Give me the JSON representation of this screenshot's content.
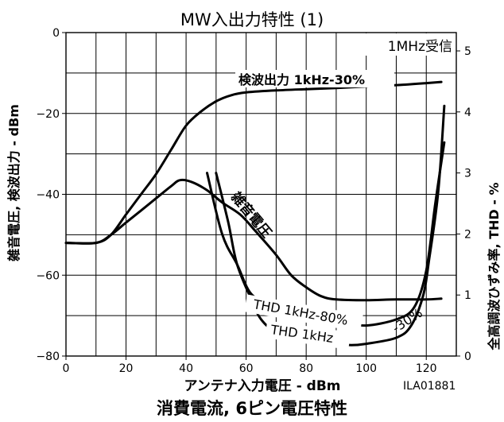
{
  "chart_data": {
    "type": "line",
    "title": "MW入出力特性 (1)",
    "subtitle": "1MHz受信",
    "xlabel": "アンテナ入力電圧 - dBm",
    "ylabel_left": "雑音電圧, 検波出力 - dBm",
    "ylabel_right": "全高調波ひずみ率, THD - %",
    "figure_id": "ILA01881",
    "footer_title": "消費電流, 6ピン電圧特性",
    "xlim": [
      0,
      130
    ],
    "ylim_left": [
      -80,
      0
    ],
    "ylim_right": [
      0,
      5.3
    ],
    "x_ticks": [
      0,
      20,
      40,
      60,
      80,
      100,
      120
    ],
    "y_left_ticks": [
      0,
      -20,
      -40,
      -60,
      -80
    ],
    "y_right_ticks": [
      0,
      1,
      2,
      3,
      4,
      5
    ],
    "grid": true,
    "series": [
      {
        "name": "検波出力 1kHz-30%",
        "axis": "left",
        "points": [
          [
            0,
            -52
          ],
          [
            10,
            -52
          ],
          [
            15,
            -50
          ],
          [
            20,
            -45
          ],
          [
            25,
            -40
          ],
          [
            30,
            -35
          ],
          [
            35,
            -29
          ],
          [
            40,
            -23
          ],
          [
            45,
            -19.5
          ],
          [
            50,
            -17
          ],
          [
            55,
            -15.5
          ],
          [
            60,
            -14.8
          ],
          [
            70,
            -14.3
          ],
          [
            80,
            -14
          ],
          [
            90,
            -13.7
          ],
          [
            100,
            -13.3
          ],
          [
            110,
            -13
          ],
          [
            120,
            -12.5
          ],
          [
            125,
            -12.2
          ]
        ]
      },
      {
        "name": "雑音電圧",
        "axis": "left",
        "points": [
          [
            0,
            -52
          ],
          [
            10,
            -52
          ],
          [
            15,
            -50
          ],
          [
            20,
            -47
          ],
          [
            25,
            -44
          ],
          [
            30,
            -41
          ],
          [
            35,
            -38
          ],
          [
            38,
            -36.5
          ],
          [
            42,
            -37
          ],
          [
            47,
            -39
          ],
          [
            52,
            -42
          ],
          [
            58,
            -45
          ],
          [
            63,
            -49
          ],
          [
            70,
            -55
          ],
          [
            75,
            -60
          ],
          [
            80,
            -63
          ],
          [
            85,
            -65.2
          ],
          [
            90,
            -66
          ],
          [
            100,
            -66.2
          ],
          [
            110,
            -66
          ],
          [
            120,
            -66
          ],
          [
            125,
            -65.8
          ]
        ]
      },
      {
        "name": "THD 1kHz-80%",
        "axis": "right",
        "points": [
          [
            47,
            3
          ],
          [
            52,
            2
          ],
          [
            57,
            1.5
          ],
          [
            62,
            1
          ],
          [
            70,
            0.85
          ],
          [
            80,
            0.75
          ],
          [
            90,
            0.6
          ],
          [
            95,
            0.55
          ],
          [
            100,
            0.5
          ],
          [
            110,
            0.6
          ],
          [
            116,
            0.8
          ],
          [
            120,
            1.4
          ],
          [
            123,
            2.5
          ],
          [
            126,
            3.5
          ]
        ]
      },
      {
        "name": "THD 1kHz-30%",
        "axis": "right",
        "points": [
          [
            50,
            3
          ],
          [
            54,
            2.2
          ],
          [
            57,
            1.5
          ],
          [
            62,
            0.9
          ],
          [
            65,
            0.6
          ],
          [
            70,
            0.4
          ],
          [
            80,
            0.25
          ],
          [
            90,
            0.2
          ],
          [
            95,
            0.18
          ],
          [
            100,
            0.2
          ],
          [
            110,
            0.3
          ],
          [
            115,
            0.5
          ],
          [
            119,
            1.0
          ],
          [
            121,
            1.6
          ],
          [
            124,
            2.7
          ],
          [
            126,
            4.1
          ]
        ]
      }
    ],
    "annotations": [
      {
        "text": "検波出力 1kHz-30%",
        "series": "検波出力 1kHz-30%"
      },
      {
        "text": "雑音電圧",
        "series": "雑音電圧"
      },
      {
        "text": "THD 1kHz-80%",
        "series": "THD 1kHz-80%"
      },
      {
        "text": "THD 1kHz",
        "series": "THD 1kHz-30%"
      },
      {
        "text": "-30%",
        "series": "THD 1kHz-30%"
      }
    ]
  }
}
